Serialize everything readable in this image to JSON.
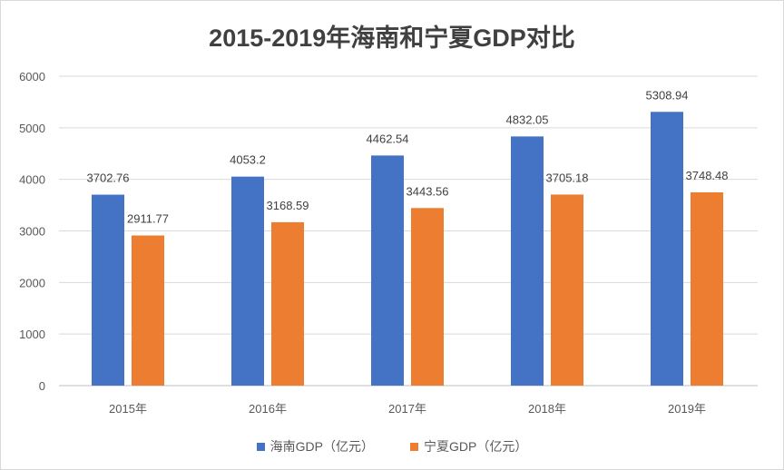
{
  "chart_data": {
    "type": "bar",
    "title": "2015-2019年海南和宁夏GDP对比",
    "categories": [
      "2015年",
      "2016年",
      "2017年",
      "2018年",
      "2019年"
    ],
    "series": [
      {
        "name": "海南GDP（亿元）",
        "values": [
          3702.76,
          4053.2,
          4462.54,
          4832.05,
          5308.94
        ],
        "color": "#4472c4"
      },
      {
        "name": "宁夏GDP（亿元）",
        "values": [
          2911.77,
          3168.59,
          3443.56,
          3705.18,
          3748.48
        ],
        "color": "#ed7d31"
      }
    ],
    "ylim": [
      0,
      6000
    ],
    "yticks": [
      0,
      1000,
      2000,
      3000,
      4000,
      5000,
      6000
    ],
    "grid": true,
    "legend": "bottom",
    "xlabel": "",
    "ylabel": ""
  }
}
